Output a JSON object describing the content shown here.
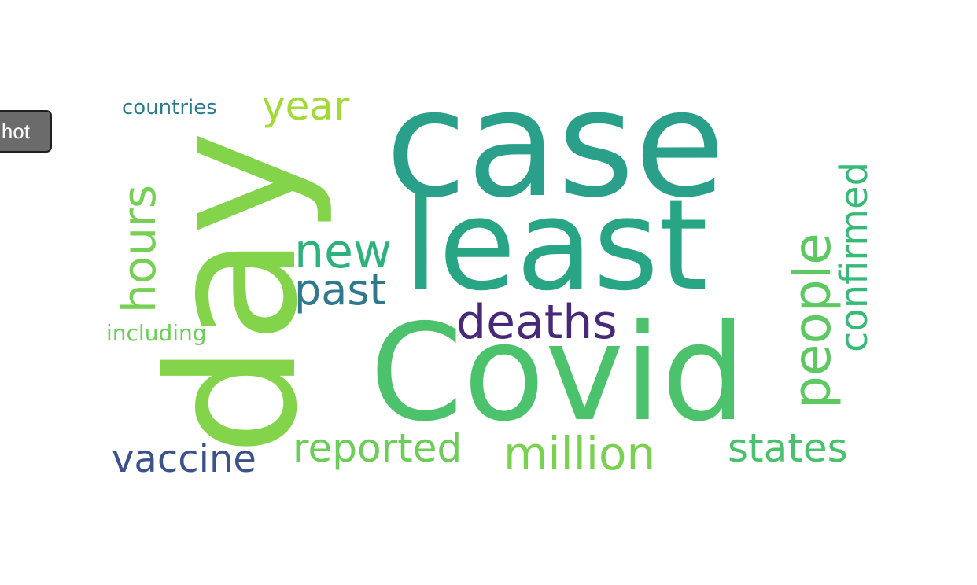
{
  "screenshot_button": {
    "label": "hot"
  },
  "wordcloud": {
    "words": [
      {
        "text": "case",
        "color": "#2aa08a"
      },
      {
        "text": "least",
        "color": "#28a585"
      },
      {
        "text": "Covid",
        "color": "#4cc26c"
      },
      {
        "text": "day",
        "color": "#84d44b"
      },
      {
        "text": "deaths",
        "color": "#482979"
      },
      {
        "text": "hours",
        "color": "#76d054"
      },
      {
        "text": "new",
        "color": "#2db27d"
      },
      {
        "text": "past",
        "color": "#30788e"
      },
      {
        "text": "year",
        "color": "#a2da37"
      },
      {
        "text": "countries",
        "color": "#2c7c8e"
      },
      {
        "text": "including",
        "color": "#6ccd5a"
      },
      {
        "text": "people",
        "color": "#5ec962"
      },
      {
        "text": "confirmed",
        "color": "#38b977"
      },
      {
        "text": "vaccine",
        "color": "#3b528b"
      },
      {
        "text": "reported",
        "color": "#6dcd59"
      },
      {
        "text": "million",
        "color": "#7ad151"
      },
      {
        "text": "states",
        "color": "#4ac16d"
      }
    ]
  }
}
